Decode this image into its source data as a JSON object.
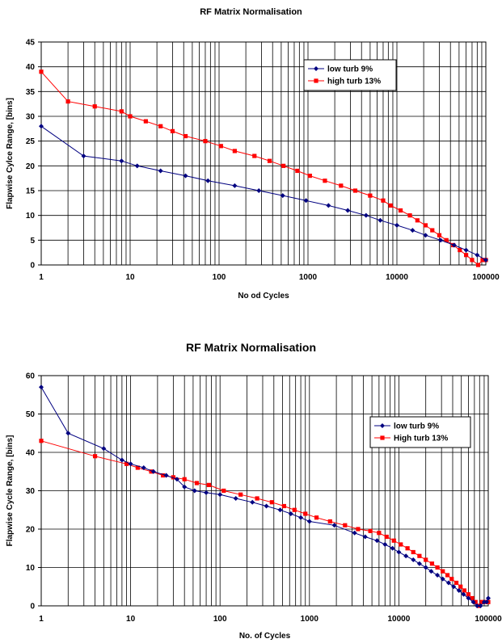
{
  "chart_data": [
    {
      "type": "line",
      "title": "RF Matrix Normalisation",
      "xlabel": "No od Cycles",
      "ylabel": "Flapwise Cylce Range, [bins]",
      "xscale": "log",
      "xlim": [
        1,
        100000
      ],
      "ylim": [
        0,
        45
      ],
      "yticks": [
        0,
        5,
        10,
        15,
        20,
        25,
        30,
        35,
        40,
        45
      ],
      "xticks": [
        1,
        10,
        100,
        1000,
        10000,
        100000
      ],
      "xtick_labels": [
        "1",
        "10",
        "100",
        "1000",
        "10000",
        "100000"
      ],
      "grid": true,
      "legend_position": "top-right",
      "series": [
        {
          "name": "low turb 9%",
          "color": "#000080",
          "marker": "diamond",
          "x": [
            1,
            3,
            8,
            12,
            22,
            42,
            75,
            150,
            280,
            520,
            950,
            1700,
            2800,
            4500,
            6500,
            10000,
            15000,
            21000,
            31000,
            44000,
            60000,
            80000,
            100000
          ],
          "y": [
            28,
            22,
            21,
            20,
            19,
            18,
            17,
            16,
            15,
            14,
            13,
            12,
            11,
            10,
            9,
            8,
            7,
            6,
            5,
            4,
            3,
            2,
            1
          ]
        },
        {
          "name": "high turb 13%",
          "color": "#ff0000",
          "marker": "square",
          "x": [
            1,
            2,
            4,
            8,
            10,
            15,
            22,
            30,
            42,
            70,
            105,
            150,
            250,
            370,
            530,
            760,
            1050,
            1550,
            2350,
            3400,
            5000,
            7000,
            8500,
            11000,
            14000,
            17000,
            21000,
            25000,
            30000,
            36000,
            43000,
            51000,
            60000,
            70000,
            82000,
            92000,
            100000
          ],
          "y": [
            39,
            33,
            32,
            31,
            30,
            29,
            28,
            27,
            26,
            25,
            24,
            23,
            22,
            21,
            20,
            19,
            18,
            17,
            16,
            15,
            14,
            13,
            12,
            11,
            10,
            9,
            8,
            7,
            6,
            5,
            4,
            3,
            2,
            1,
            0,
            1,
            1
          ]
        }
      ]
    },
    {
      "type": "line",
      "title": "RF Matrix Normalisation",
      "xlabel": "No. of Cycles",
      "ylabel": "Flapwise Cycle Range, [bins]",
      "xscale": "log",
      "xlim": [
        1,
        100000
      ],
      "ylim": [
        0,
        60
      ],
      "yticks": [
        0,
        10,
        20,
        30,
        40,
        50,
        60
      ],
      "xticks": [
        1,
        10,
        100,
        1000,
        10000,
        100000
      ],
      "xtick_labels": [
        "1",
        "10",
        "100",
        "1000",
        "10000",
        "100000"
      ],
      "grid": true,
      "legend_position": "top-right",
      "series": [
        {
          "name": "low turb 9%",
          "color": "#000080",
          "marker": "diamond",
          "x": [
            1,
            2,
            5,
            8,
            10,
            14,
            18,
            25,
            33,
            40,
            52,
            70,
            100,
            150,
            230,
            330,
            470,
            620,
            800,
            1000,
            1900,
            3200,
            4200,
            5700,
            7000,
            8500,
            10000,
            12000,
            14500,
            17000,
            20000,
            23000,
            27000,
            31000,
            36000,
            41000,
            47000,
            53000,
            60000,
            68000,
            75000,
            82000,
            90000,
            96000,
            100000
          ],
          "y": [
            57,
            45,
            41,
            38,
            37,
            36,
            35,
            34,
            33,
            31,
            30,
            29.5,
            29,
            28,
            27,
            26,
            25,
            24,
            23,
            22,
            21,
            19,
            18,
            17,
            16,
            15,
            14,
            13,
            12,
            11,
            10,
            9,
            8,
            7,
            6,
            5,
            4,
            3,
            2,
            1,
            0,
            0,
            1,
            1,
            2
          ]
        },
        {
          "name": "High turb 13%",
          "color": "#ff0000",
          "marker": "square",
          "x": [
            1,
            4,
            9,
            12,
            17,
            23,
            30,
            40,
            55,
            75,
            110,
            170,
            260,
            380,
            520,
            680,
            900,
            1200,
            1700,
            2500,
            3500,
            4800,
            6000,
            7300,
            8800,
            10500,
            12500,
            14500,
            17000,
            20000,
            23500,
            27000,
            31000,
            35000,
            39000,
            44000,
            49000,
            54000,
            60000,
            66000,
            72000,
            78000,
            85000,
            92000,
            100000
          ],
          "y": [
            43,
            39,
            37,
            36,
            35,
            34,
            33.5,
            33,
            32,
            31.5,
            30,
            29,
            28,
            27,
            26,
            25,
            24,
            23,
            22,
            21,
            20,
            19.5,
            19,
            18,
            17,
            16,
            15,
            14,
            13,
            12,
            11,
            10,
            9,
            8,
            7,
            6,
            5,
            4,
            3,
            2,
            1,
            0,
            1,
            1,
            1
          ]
        }
      ]
    }
  ]
}
